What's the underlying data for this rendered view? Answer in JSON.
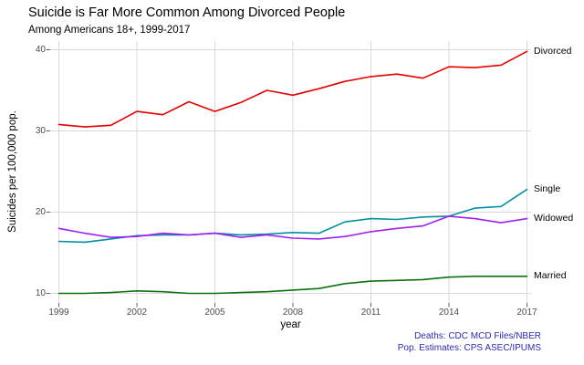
{
  "header": {
    "title": "Suicide is Far More Common Among Divorced People",
    "subtitle": "Among Americans 18+, 1999-2017"
  },
  "caption": {
    "line1": "Deaths: CDC MCD Files/NBER",
    "line2": "Pop. Estimates: CPS ASEC/IPUMS",
    "color": "#2A2AB4"
  },
  "colors": {
    "background": "#FFFFFF",
    "gridline": "#D9D9D9",
    "tick_mark": "#666666",
    "axis_text": "#4D4D4D",
    "text": "#000000"
  },
  "chart_data": {
    "type": "line",
    "title": "Suicide is Far More Common Among Divorced People",
    "subtitle": "Among Americans 18+, 1999-2017",
    "xlabel": "year",
    "ylabel": "Suicides per 100,000 pop.",
    "x": [
      1999,
      2000,
      2001,
      2002,
      2003,
      2004,
      2005,
      2006,
      2007,
      2008,
      2009,
      2010,
      2011,
      2012,
      2013,
      2014,
      2015,
      2016,
      2017
    ],
    "series": [
      {
        "name": "Divorced",
        "color": "#E60000",
        "values": [
          30.8,
          30.5,
          30.7,
          32.4,
          32.0,
          33.6,
          32.4,
          33.5,
          35.0,
          34.4,
          35.2,
          36.1,
          36.7,
          37.0,
          36.5,
          37.9,
          37.8,
          38.1,
          39.8
        ]
      },
      {
        "name": "Single",
        "color": "#0090A0",
        "values": [
          16.4,
          16.3,
          16.7,
          17.1,
          17.2,
          17.2,
          17.4,
          17.2,
          17.3,
          17.5,
          17.4,
          18.8,
          19.2,
          19.1,
          19.4,
          19.5,
          20.5,
          20.7,
          22.8
        ]
      },
      {
        "name": "Widowed",
        "color": "#A020F0",
        "values": [
          18.0,
          17.4,
          16.9,
          17.0,
          17.4,
          17.2,
          17.4,
          16.9,
          17.2,
          16.8,
          16.7,
          17.0,
          17.6,
          18.0,
          18.3,
          19.5,
          19.2,
          18.7,
          19.2
        ]
      },
      {
        "name": "Married",
        "color": "#0B720F",
        "values": [
          10.0,
          10.0,
          10.1,
          10.3,
          10.2,
          10.0,
          10.0,
          10.1,
          10.2,
          10.4,
          10.6,
          11.2,
          11.5,
          11.6,
          11.7,
          12.0,
          12.1,
          12.1,
          12.1
        ]
      }
    ],
    "xticks": [
      1999,
      2002,
      2005,
      2008,
      2011,
      2014,
      2017
    ],
    "yticks": [
      10,
      20,
      30,
      40
    ],
    "xlim": [
      1999,
      2017
    ],
    "ylim": [
      8.8,
      41.1
    ],
    "grid": true,
    "legend_position": "direct-labels-right"
  }
}
